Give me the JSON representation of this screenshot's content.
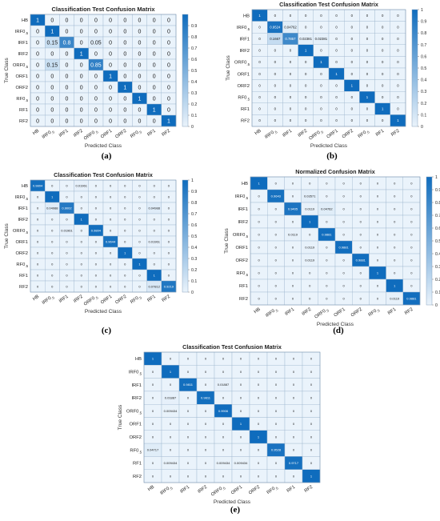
{
  "classes": [
    "HB",
    "IRF0.5",
    "IRF1",
    "IRF2",
    "ORF0.5",
    "ORF1",
    "ORF2",
    "RF0.5",
    "RF1",
    "RF2"
  ],
  "colors": {
    "high": "#0f6cbd",
    "low": "#eaf3fb",
    "border": "#9fb7cf"
  },
  "chart_data": [
    {
      "type": "heatmap",
      "panel_label": "(a)",
      "title": "Classification Test Confusion Matrix",
      "xlabel": "Predicted Class",
      "ylabel": "True Class",
      "colorbar": {
        "range": [
          0,
          1
        ],
        "ticks": [
          "0",
          "0.1",
          "0.2",
          "0.3",
          "0.4",
          "0.5",
          "0.6",
          "0.7",
          "0.8",
          "0.9"
        ]
      },
      "matrix": [
        [
          "1",
          "0",
          "0",
          "0",
          "0",
          "0",
          "0",
          "0",
          "0",
          "0"
        ],
        [
          "0",
          "1",
          "0",
          "0",
          "0",
          "0",
          "0",
          "0",
          "0",
          "0"
        ],
        [
          "0",
          "0.15",
          "0.8",
          "0",
          "0.05",
          "0",
          "0",
          "0",
          "0",
          "0"
        ],
        [
          "0",
          "0",
          "0",
          "1",
          "0",
          "0",
          "0",
          "0",
          "0",
          "0"
        ],
        [
          "0",
          "0.15",
          "0",
          "0",
          "0.85",
          "0",
          "0",
          "0",
          "0",
          "0"
        ],
        [
          "0",
          "0",
          "0",
          "0",
          "0",
          "1",
          "0",
          "0",
          "0",
          "0"
        ],
        [
          "0",
          "0",
          "0",
          "0",
          "0",
          "0",
          "1",
          "0",
          "0",
          "0"
        ],
        [
          "0",
          "0",
          "0",
          "0",
          "0",
          "0",
          "0",
          "1",
          "0",
          "0"
        ],
        [
          "0",
          "0",
          "0",
          "0",
          "0",
          "0",
          "0",
          "0",
          "1",
          "0"
        ],
        [
          "0",
          "0",
          "0",
          "0",
          "0",
          "0",
          "0",
          "0",
          "0",
          "1"
        ]
      ]
    },
    {
      "type": "heatmap",
      "panel_label": "(b)",
      "title": "Classification Test Confusion Matrix",
      "xlabel": "Predicted Class",
      "ylabel": "True Class",
      "colorbar": {
        "range": [
          0,
          1
        ],
        "ticks": [
          "0",
          "0.1",
          "0.2",
          "0.3",
          "0.4",
          "0.5",
          "0.6",
          "0.7",
          "0.8",
          "0.9",
          "1"
        ]
      },
      "matrix": [
        [
          "1",
          "0",
          "0",
          "0",
          "0",
          "0",
          "0",
          "0",
          "0",
          "0"
        ],
        [
          "0",
          "0.9524",
          "0.04762",
          "0",
          "0",
          "0",
          "0",
          "0",
          "0",
          "0"
        ],
        [
          "0",
          "0.1667",
          "0.7857",
          "0.02381",
          "0.02381",
          "0",
          "0",
          "0",
          "0",
          "0"
        ],
        [
          "0",
          "0",
          "0",
          "1",
          "0",
          "0",
          "0",
          "0",
          "0",
          "0"
        ],
        [
          "0",
          "0",
          "0",
          "0",
          "1",
          "0",
          "0",
          "0",
          "0",
          "0"
        ],
        [
          "0",
          "0",
          "0",
          "0",
          "0",
          "1",
          "0",
          "0",
          "0",
          "0"
        ],
        [
          "0",
          "0",
          "0",
          "0",
          "0",
          "0",
          "1",
          "0",
          "0",
          "0"
        ],
        [
          "0",
          "0",
          "0",
          "0",
          "0",
          "0",
          "0",
          "1",
          "0",
          "0"
        ],
        [
          "0",
          "0",
          "0",
          "0",
          "0",
          "0",
          "0",
          "0",
          "1",
          "0"
        ],
        [
          "0",
          "0",
          "0",
          "0",
          "0",
          "0",
          "0",
          "0",
          "0",
          "1"
        ]
      ]
    },
    {
      "type": "heatmap",
      "panel_label": "(c)",
      "title": "Classification Test Confusion Matrix",
      "xlabel": "Predicted Class",
      "ylabel": "True Class",
      "colorbar": {
        "range": [
          0,
          1
        ],
        "ticks": [
          "0",
          "0.1",
          "0.2",
          "0.3",
          "0.4",
          "0.5",
          "0.6",
          "0.7",
          "0.8",
          "0.9",
          "1"
        ]
      },
      "matrix": [
        [
          "0.9804",
          "0",
          "0",
          "0.01961",
          "0",
          "0",
          "0",
          "0",
          "0",
          "0"
        ],
        [
          "0",
          "1",
          "0",
          "0",
          "0",
          "0",
          "0",
          "0",
          "0",
          "0"
        ],
        [
          "0",
          "0.04988",
          "0.9002",
          "0",
          "0",
          "0",
          "0",
          "0",
          "0.04988",
          "0"
        ],
        [
          "0",
          "0",
          "0",
          "1",
          "0",
          "0",
          "0",
          "0",
          "0",
          "0"
        ],
        [
          "0",
          "0",
          "0.01961",
          "0",
          "0.9804",
          "0",
          "0",
          "0",
          "0",
          "0"
        ],
        [
          "0",
          "0",
          "0",
          "0",
          "0",
          "0.9644",
          "0",
          "0",
          "0.01961",
          "0"
        ],
        [
          "0",
          "0",
          "0",
          "0",
          "0",
          "0",
          "1",
          "0",
          "0",
          "0"
        ],
        [
          "0",
          "0",
          "0",
          "0",
          "0",
          "0",
          "0",
          "1",
          "0",
          "0"
        ],
        [
          "0",
          "0",
          "0",
          "0",
          "0",
          "0",
          "0",
          "0",
          "1",
          "0"
        ],
        [
          "0",
          "0",
          "0",
          "0",
          "0",
          "0",
          "0",
          "0",
          "0.07812",
          "0.9219"
        ]
      ]
    },
    {
      "type": "heatmap",
      "panel_label": "(d)",
      "title": "Normalized Confusion Matrix",
      "xlabel": "Predicted Class",
      "ylabel": "True Class",
      "colorbar": {
        "range": [
          0,
          1
        ],
        "ticks": [
          "0",
          "0.1",
          "0.2",
          "0.3",
          "0.4",
          "0.5",
          "0.6",
          "0.7",
          "0.8",
          "0.9",
          "1"
        ]
      },
      "matrix": [
        [
          "1",
          "0",
          "0",
          "0",
          "0",
          "0",
          "0",
          "0",
          "0",
          "0"
        ],
        [
          "0",
          "0.9643",
          "0",
          "0.03571",
          "0",
          "0",
          "0",
          "0",
          "0",
          "0"
        ],
        [
          "0",
          "0",
          "0.9405",
          "0.0119",
          "0.04762",
          "0",
          "0",
          "0",
          "0",
          "0"
        ],
        [
          "0",
          "0",
          "0",
          "1",
          "0",
          "0",
          "0",
          "0",
          "0",
          "0"
        ],
        [
          "0",
          "0",
          "0.0119",
          "0",
          "0.9881",
          "0",
          "0",
          "0",
          "0",
          "0"
        ],
        [
          "0",
          "0",
          "0",
          "0.0119",
          "0",
          "0.9881",
          "0",
          "0",
          "0",
          "0"
        ],
        [
          "0",
          "0",
          "0",
          "0.0119",
          "0",
          "0",
          "0.9881",
          "0",
          "0",
          "0"
        ],
        [
          "0",
          "0",
          "0",
          "0",
          "0",
          "0",
          "0",
          "1",
          "0",
          "0"
        ],
        [
          "0",
          "0",
          "0",
          "0",
          "0",
          "0",
          "0",
          "0",
          "1",
          "0"
        ],
        [
          "0",
          "0",
          "0",
          "0",
          "0",
          "0",
          "0",
          "0",
          "0.0119",
          "0.9881"
        ]
      ]
    },
    {
      "type": "heatmap",
      "panel_label": "(e)",
      "title": "Classification Test Confusion Matrix",
      "xlabel": "Predicted Class",
      "ylabel": "True Class",
      "colorbar": null,
      "matrix": [
        [
          "1",
          "0",
          "0",
          "0",
          "0",
          "0",
          "0",
          "0",
          "0",
          "0"
        ],
        [
          "0",
          "1",
          "0",
          "0",
          "0",
          "0",
          "0",
          "0",
          "0",
          "0"
        ],
        [
          "0",
          "0",
          "0.9811",
          "0",
          "0.01887",
          "0",
          "0",
          "0",
          "0",
          "0"
        ],
        [
          "0",
          "0.01887",
          "0",
          "0.9811",
          "0",
          "0",
          "0",
          "0",
          "0",
          "0"
        ],
        [
          "0",
          "0.009434",
          "0",
          "0",
          "0.9906",
          "0",
          "0",
          "0",
          "0",
          "0"
        ],
        [
          "0",
          "0",
          "0",
          "0",
          "0",
          "1",
          "0",
          "0",
          "0",
          "0"
        ],
        [
          "0",
          "0",
          "0",
          "0",
          "0",
          "0",
          "1",
          "0",
          "0",
          "0"
        ],
        [
          "0.04717",
          "0",
          "0",
          "0",
          "0",
          "0",
          "0",
          "0.9528",
          "0",
          "0"
        ],
        [
          "0",
          "0.009434",
          "0",
          "0",
          "0.009434",
          "0.009434",
          "0",
          "0",
          "0.9717",
          "0"
        ],
        [
          "0",
          "0",
          "0",
          "0",
          "0",
          "0",
          "0",
          "0",
          "0",
          "1"
        ]
      ]
    }
  ]
}
